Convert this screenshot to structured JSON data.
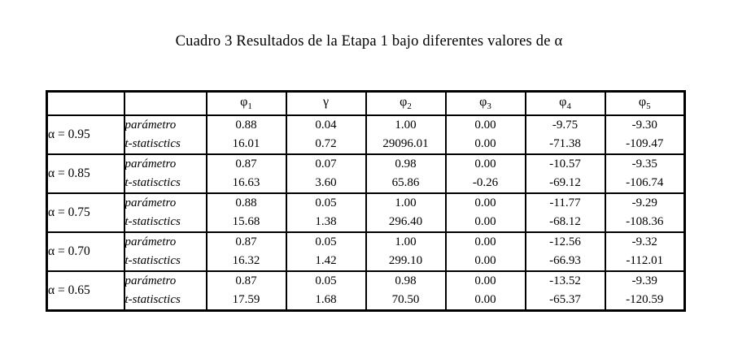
{
  "page": {
    "title": "Cuadro 3 Resultados de la Etapa 1 bajo diferentes valores de α"
  },
  "table": {
    "headers": [
      {
        "sym": "φ",
        "sub": "1"
      },
      {
        "sym": "γ",
        "sub": ""
      },
      {
        "sym": "φ",
        "sub": "2"
      },
      {
        "sym": "φ",
        "sub": "3"
      },
      {
        "sym": "φ",
        "sub": "4"
      },
      {
        "sym": "φ",
        "sub": "5"
      }
    ],
    "row_labels": [
      "parámetro",
      "t-statisctics"
    ],
    "groups": [
      {
        "alpha": "α = 0.95",
        "parametro": [
          "0.88",
          "0.04",
          "1.00",
          "0.00",
          "-9.75",
          "-9.30"
        ],
        "t_statistics": [
          "16.01",
          "0.72",
          "29096.01",
          "0.00",
          "-71.38",
          "-109.47"
        ]
      },
      {
        "alpha": "α = 0.85",
        "parametro": [
          "0.87",
          "0.07",
          "0.98",
          "0.00",
          "-10.57",
          "-9.35"
        ],
        "t_statistics": [
          "16.63",
          "3.60",
          "65.86",
          "-0.26",
          "-69.12",
          "-106.74"
        ]
      },
      {
        "alpha": "α = 0.75",
        "parametro": [
          "0.88",
          "0.05",
          "1.00",
          "0.00",
          "-11.77",
          "-9.29"
        ],
        "t_statistics": [
          "15.68",
          "1.38",
          "296.40",
          "0.00",
          "-68.12",
          "-108.36"
        ]
      },
      {
        "alpha": "α = 0.70",
        "parametro": [
          "0.87",
          "0.05",
          "1.00",
          "0.00",
          "-12.56",
          "-9.32"
        ],
        "t_statistics": [
          "16.32",
          "1.42",
          "299.10",
          "0.00",
          "-66.93",
          "-112.01"
        ]
      },
      {
        "alpha": "α = 0.65",
        "parametro": [
          "0.87",
          "0.05",
          "0.98",
          "0.00",
          "-13.52",
          "-9.39"
        ],
        "t_statistics": [
          "17.59",
          "1.68",
          "70.50",
          "0.00",
          "-65.37",
          "-120.59"
        ]
      }
    ]
  }
}
